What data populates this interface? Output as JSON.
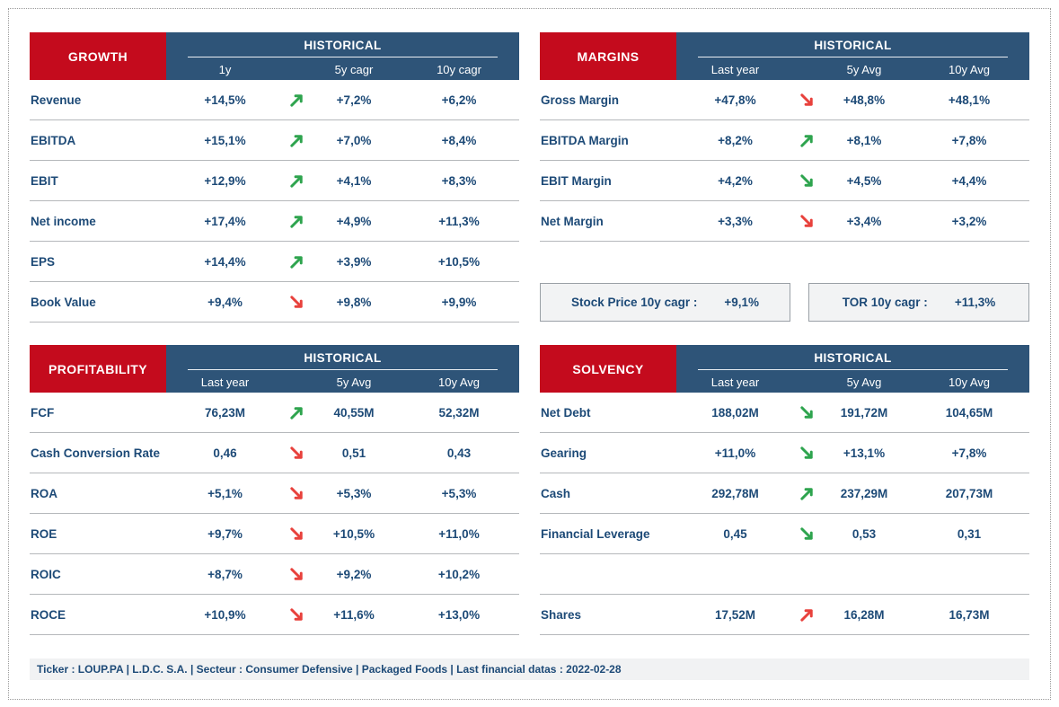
{
  "colors": {
    "red": "#C40B1D",
    "blue": "#2E5478",
    "navy": "#1D4A77",
    "arrow_green": "#2EA44E",
    "arrow_red": "#E8413C"
  },
  "tables": [
    {
      "id": "growth",
      "title": "GROWTH",
      "historical_label": "HISTORICAL",
      "columns": [
        "1y",
        "5y cagr",
        "10y cagr"
      ],
      "rows": [
        {
          "label": "Revenue",
          "v1": "+14,5%",
          "trend": "up-green",
          "v2": "+7,2%",
          "v3": "+6,2%"
        },
        {
          "label": "EBITDA",
          "v1": "+15,1%",
          "trend": "up-green",
          "v2": "+7,0%",
          "v3": "+8,4%"
        },
        {
          "label": "EBIT",
          "v1": "+12,9%",
          "trend": "up-green",
          "v2": "+4,1%",
          "v3": "+8,3%"
        },
        {
          "label": "Net income",
          "v1": "+17,4%",
          "trend": "up-green",
          "v2": "+4,9%",
          "v3": "+11,3%"
        },
        {
          "label": "EPS",
          "v1": "+14,4%",
          "trend": "up-green",
          "v2": "+3,9%",
          "v3": "+10,5%"
        },
        {
          "label": "Book Value",
          "v1": "+9,4%",
          "trend": "down-red",
          "v2": "+9,8%",
          "v3": "+9,9%"
        }
      ]
    },
    {
      "id": "margins",
      "title": "MARGINS",
      "historical_label": "HISTORICAL",
      "columns": [
        "Last year",
        "5y Avg",
        "10y Avg"
      ],
      "rows": [
        {
          "label": "Gross Margin",
          "v1": "+47,8%",
          "trend": "down-red",
          "v2": "+48,8%",
          "v3": "+48,1%"
        },
        {
          "label": "EBITDA Margin",
          "v1": "+8,2%",
          "trend": "up-green",
          "v2": "+8,1%",
          "v3": "+7,8%"
        },
        {
          "label": "EBIT Margin",
          "v1": "+4,2%",
          "trend": "down-green",
          "v2": "+4,5%",
          "v3": "+4,4%"
        },
        {
          "label": "Net Margin",
          "v1": "+3,3%",
          "trend": "down-red",
          "v2": "+3,4%",
          "v3": "+3,2%"
        }
      ]
    },
    {
      "id": "profitability",
      "title": "PROFITABILITY",
      "historical_label": "HISTORICAL",
      "columns": [
        "Last year",
        "5y Avg",
        "10y Avg"
      ],
      "rows": [
        {
          "label": "FCF",
          "v1": "76,23M",
          "trend": "up-green",
          "v2": "40,55M",
          "v3": "52,32M"
        },
        {
          "label": "Cash Conversion Rate",
          "v1": "0,46",
          "trend": "down-red",
          "v2": "0,51",
          "v3": "0,43"
        },
        {
          "label": "ROA",
          "v1": "+5,1%",
          "trend": "down-red",
          "v2": "+5,3%",
          "v3": "+5,3%"
        },
        {
          "label": "ROE",
          "v1": "+9,7%",
          "trend": "down-red",
          "v2": "+10,5%",
          "v3": "+11,0%"
        },
        {
          "label": "ROIC",
          "v1": "+8,7%",
          "trend": "down-red",
          "v2": "+9,2%",
          "v3": "+10,2%"
        },
        {
          "label": "ROCE",
          "v1": "+10,9%",
          "trend": "down-red",
          "v2": "+11,6%",
          "v3": "+13,0%"
        }
      ]
    },
    {
      "id": "solvency",
      "title": "SOLVENCY",
      "historical_label": "HISTORICAL",
      "columns": [
        "Last year",
        "5y Avg",
        "10y Avg"
      ],
      "rows": [
        {
          "label": "Net Debt",
          "v1": "188,02M",
          "trend": "down-green",
          "v2": "191,72M",
          "v3": "104,65M"
        },
        {
          "label": "Gearing",
          "v1": "+11,0%",
          "trend": "down-green",
          "v2": "+13,1%",
          "v3": "+7,8%"
        },
        {
          "label": "Cash",
          "v1": "292,78M",
          "trend": "up-green",
          "v2": "237,29M",
          "v3": "207,73M"
        },
        {
          "label": "Financial Leverage",
          "v1": "0,45",
          "trend": "down-green",
          "v2": "0,53",
          "v3": "0,31"
        },
        {
          "label": "",
          "v1": "",
          "trend": null,
          "v2": "",
          "v3": ""
        },
        {
          "label": "Shares",
          "v1": "17,52M",
          "trend": "up-red",
          "v2": "16,28M",
          "v3": "16,73M"
        }
      ]
    }
  ],
  "summary_boxes": [
    {
      "label": "Stock Price 10y cagr :",
      "value": "+9,1%"
    },
    {
      "label": "TOR 10y cagr :",
      "value": "+11,3%"
    }
  ],
  "footer": {
    "text": "Ticker : LOUP.PA  |  L.D.C. S.A.  |  Secteur :  Consumer Defensive  |  Packaged Foods  |  Last financial datas :  2022-02-28"
  }
}
